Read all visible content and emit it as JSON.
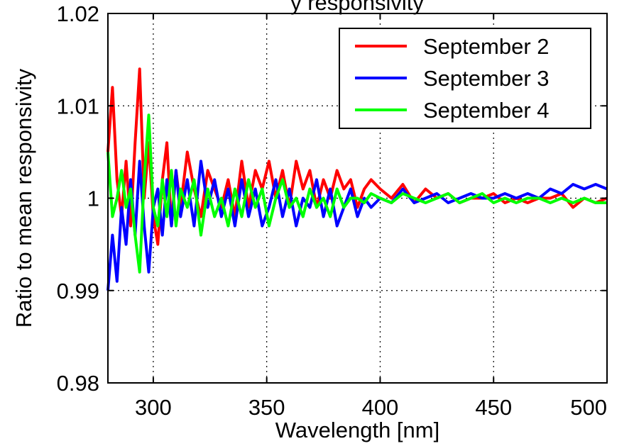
{
  "chart_data": {
    "type": "line",
    "title": "y responsivity",
    "xlabel": "Wavelength [nm]",
    "ylabel": "Ratio to mean responsivity",
    "xlim": [
      280,
      500
    ],
    "ylim": [
      0.98,
      1.02
    ],
    "xticks": [
      300,
      350,
      400,
      450,
      500
    ],
    "xtick_labels": [
      "300",
      "350",
      "400",
      "450",
      "500"
    ],
    "yticks": [
      0.98,
      0.99,
      1.0,
      1.01,
      1.02
    ],
    "ytick_labels": [
      "0.98",
      "0.99",
      "1",
      "1.01",
      "1.02"
    ],
    "grid": true,
    "legend_position": "top-right",
    "series": [
      {
        "name": "September 2",
        "color": "#ff0000",
        "x": [
          280,
          282,
          284,
          286,
          288,
          290,
          292,
          294,
          296,
          298,
          300,
          302,
          304,
          306,
          308,
          310,
          312,
          315,
          318,
          321,
          324,
          327,
          330,
          333,
          336,
          339,
          342,
          345,
          348,
          351,
          354,
          357,
          360,
          363,
          366,
          369,
          372,
          375,
          378,
          381,
          384,
          387,
          390,
          393,
          396,
          400,
          405,
          410,
          415,
          420,
          425,
          430,
          435,
          440,
          445,
          450,
          455,
          460,
          465,
          470,
          475,
          480,
          485,
          490,
          495,
          500
        ],
        "y": [
          1.005,
          1.012,
          1.002,
          0.998,
          1.004,
          0.997,
          1.006,
          1.014,
          1.0,
          1.006,
          0.998,
          0.995,
          1.002,
          1.006,
          0.997,
          1.003,
          0.999,
          1.005,
          1.001,
          0.998,
          1.003,
          1.001,
          0.999,
          1.002,
          0.998,
          1.004,
          0.999,
          1.003,
          1.001,
          1.004,
          1.0,
          1.003,
          0.999,
          1.004,
          1.001,
          1.003,
          0.999,
          1.002,
          1.0,
          1.003,
          1.001,
          1.002,
          0.999,
          1.001,
          1.002,
          1.001,
          1.0,
          1.0015,
          0.9995,
          1.001,
          1.0,
          1.0005,
          0.9995,
          1.0,
          1.0,
          1.0005,
          0.9995,
          1.0,
          0.9995,
          1.0,
          1.0,
          1.0005,
          0.999,
          1.0,
          0.9995,
          1.0
        ]
      },
      {
        "name": "September 3",
        "color": "#0000ff",
        "x": [
          280,
          282,
          284,
          286,
          288,
          290,
          292,
          294,
          296,
          298,
          300,
          302,
          304,
          306,
          308,
          310,
          312,
          315,
          318,
          321,
          324,
          327,
          330,
          333,
          336,
          339,
          342,
          345,
          348,
          351,
          354,
          357,
          360,
          363,
          366,
          369,
          372,
          375,
          378,
          381,
          384,
          387,
          390,
          393,
          396,
          400,
          405,
          410,
          415,
          420,
          425,
          430,
          435,
          440,
          445,
          450,
          455,
          460,
          465,
          470,
          475,
          480,
          485,
          490,
          495,
          500
        ],
        "y": [
          0.99,
          0.996,
          0.991,
          0.999,
          0.995,
          1.002,
          0.996,
          1.004,
          0.997,
          0.992,
          0.999,
          1.001,
          0.996,
          1.002,
          0.997,
          1.003,
          0.998,
          1.002,
          0.997,
          1.004,
          0.999,
          1.002,
          0.998,
          1.001,
          0.997,
          1.002,
          0.998,
          1.001,
          0.997,
          0.999,
          1.002,
          0.998,
          1.001,
          0.997,
          1.0,
          0.999,
          1.002,
          0.998,
          1.001,
          0.997,
          0.999,
          1.001,
          0.998,
          1.0,
          0.999,
          1.0,
          0.9995,
          1.001,
          0.9995,
          1.0,
          1.0005,
          0.9995,
          1.0,
          1.0005,
          1.0,
          1.0,
          1.0005,
          1.0,
          1.0005,
          1.0,
          1.001,
          1.0005,
          1.0015,
          1.001,
          1.0015,
          1.001
        ]
      },
      {
        "name": "September 4",
        "color": "#00ff00",
        "x": [
          280,
          282,
          284,
          286,
          288,
          290,
          292,
          294,
          296,
          298,
          300,
          302,
          304,
          306,
          308,
          310,
          312,
          315,
          318,
          321,
          324,
          327,
          330,
          333,
          336,
          339,
          342,
          345,
          348,
          351,
          354,
          357,
          360,
          363,
          366,
          369,
          372,
          375,
          378,
          381,
          384,
          387,
          390,
          393,
          396,
          400,
          405,
          410,
          415,
          420,
          425,
          430,
          435,
          440,
          445,
          450,
          455,
          460,
          465,
          470,
          475,
          480,
          485,
          490,
          495,
          500
        ],
        "y": [
          1.005,
          0.998,
          1.0,
          1.003,
          0.999,
          1.001,
          0.996,
          0.992,
          1.002,
          1.009,
          0.999,
          0.997,
          1.002,
          0.998,
          1.003,
          0.997,
          1.001,
          0.999,
          1.002,
          0.996,
          1.001,
          0.998,
          1.0,
          0.997,
          1.001,
          0.998,
          1.002,
          0.999,
          1.001,
          0.997,
          1.0,
          1.002,
          0.999,
          1.0,
          0.998,
          1.001,
          0.999,
          1.0,
          0.998,
          1.001,
          0.999,
          1.0,
          1.0,
          0.9995,
          1.0005,
          1.0,
          0.9995,
          1.0005,
          1.0,
          0.9995,
          1.0,
          1.0005,
          0.9995,
          1.0,
          1.0005,
          0.9995,
          1.0,
          0.9995,
          1.0,
          1.0,
          0.9995,
          1.0,
          0.9995,
          1.0,
          0.9995,
          0.9995
        ]
      }
    ]
  }
}
